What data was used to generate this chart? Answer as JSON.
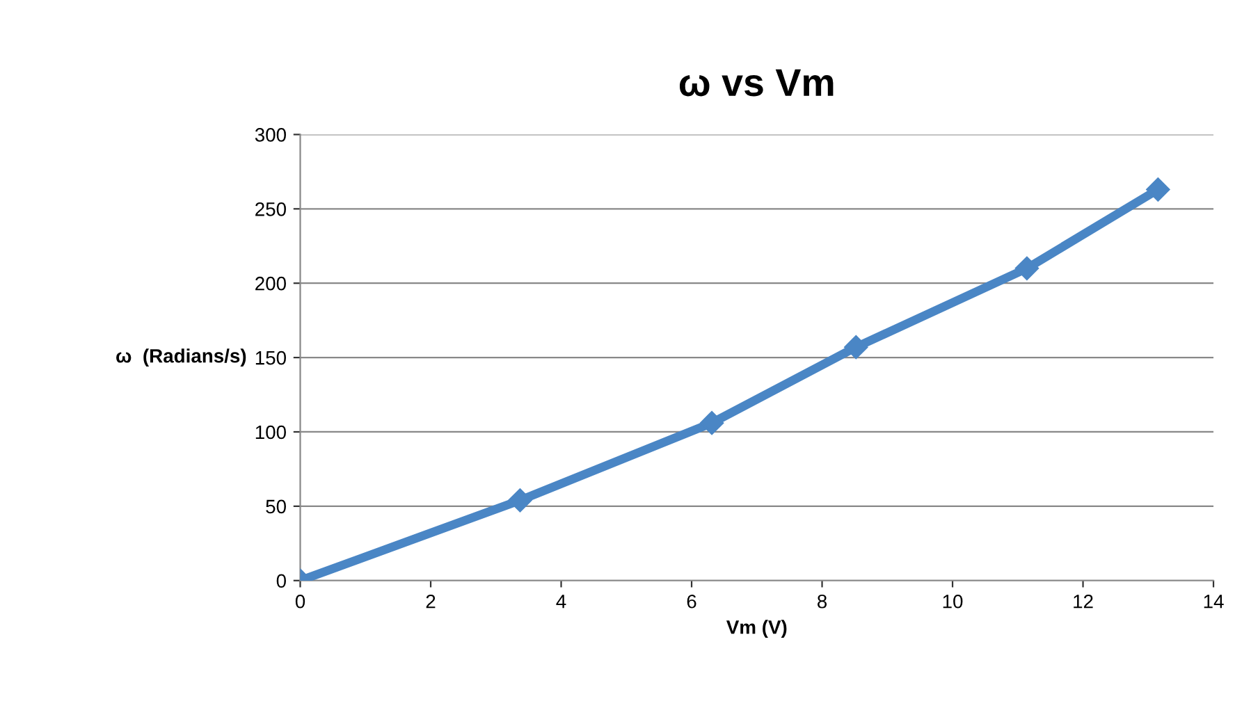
{
  "chart_data": {
    "type": "line",
    "title": "ω vs Vm",
    "xlabel": "Vm (V)",
    "ylabel": "ω  (Radians/s)",
    "x": [
      0,
      3.37,
      6.31,
      8.52,
      11.14,
      13.15
    ],
    "series": [
      {
        "color": "#4a86c5",
        "values": [
          0,
          54,
          106,
          157,
          210,
          263
        ]
      }
    ],
    "xlim": [
      0,
      14
    ],
    "xticks": [
      0,
      2,
      4,
      6,
      8,
      10,
      12,
      14
    ],
    "ylim": [
      0,
      300
    ],
    "yticks": [
      0,
      50,
      100,
      150,
      200,
      250,
      300
    ],
    "grid": "y",
    "marker": "diamond",
    "line_style": "solid",
    "legend": false
  }
}
